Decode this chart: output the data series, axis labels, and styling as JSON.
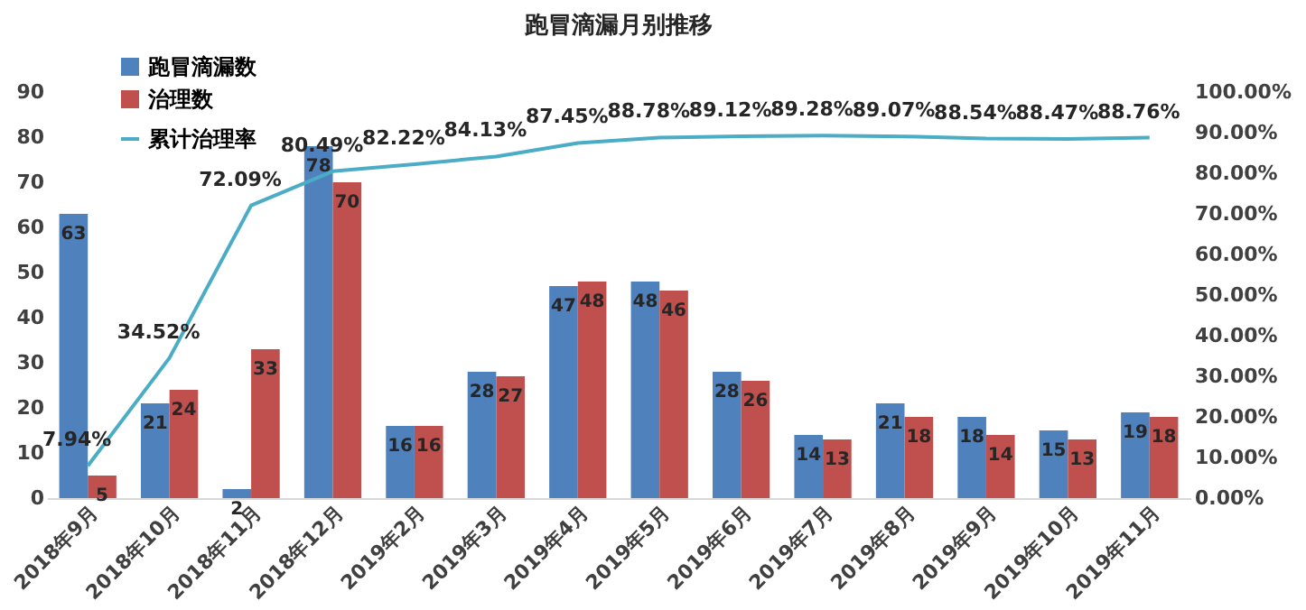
{
  "chart_data": {
    "type": "bar",
    "title": "跑冒滴漏月别推移",
    "categories": [
      "2018年9月",
      "2018年10月",
      "2018年11月",
      "2018年12月",
      "2019年2月",
      "2019年3月",
      "2019年4月",
      "2019年5月",
      "2019年6月",
      "2019年7月",
      "2019年8月",
      "2019年9月",
      "2019年10月",
      "2019年11月"
    ],
    "series": [
      {
        "name": "跑冒滴漏数",
        "color": "#4f81bd",
        "values": [
          63,
          21,
          2,
          78,
          16,
          28,
          47,
          48,
          28,
          14,
          21,
          18,
          15,
          19
        ]
      },
      {
        "name": "治理数",
        "color": "#c0504d",
        "values": [
          5,
          24,
          33,
          70,
          16,
          27,
          48,
          46,
          26,
          13,
          18,
          14,
          13,
          18
        ]
      },
      {
        "name": "累计治理率",
        "type": "line",
        "axis": "y2",
        "color": "#4bacc6",
        "values": [
          7.94,
          34.52,
          72.09,
          80.49,
          82.22,
          84.13,
          87.45,
          88.78,
          89.12,
          89.28,
          89.07,
          88.54,
          88.47,
          88.76
        ],
        "value_labels": [
          "7.94%",
          "34.52%",
          "72.09%",
          "80.49%",
          "82.22%",
          "84.13%",
          "87.45%",
          "88.78%",
          "89.12%",
          "89.28%",
          "89.07%",
          "88.54%",
          "88.47%",
          "88.76%"
        ]
      }
    ],
    "ylim": [
      0,
      90
    ],
    "yticks": [
      0,
      10,
      20,
      30,
      40,
      50,
      60,
      70,
      80,
      90
    ],
    "y2lim": [
      0,
      100
    ],
    "y2ticks": [
      {
        "value": 0,
        "label": "0.00%"
      },
      {
        "value": 10,
        "label": "10.00%"
      },
      {
        "value": 20,
        "label": "20.00%"
      },
      {
        "value": 30,
        "label": "30.00%"
      },
      {
        "value": 40,
        "label": "40.00%"
      },
      {
        "value": 50,
        "label": "50.00%"
      },
      {
        "value": 60,
        "label": "60.00%"
      },
      {
        "value": 70,
        "label": "70.00%"
      },
      {
        "value": 80,
        "label": "80.00%"
      },
      {
        "value": 90,
        "label": "90.00%"
      },
      {
        "value": 100,
        "label": "100.00%"
      }
    ],
    "data_labels": true,
    "legend": "top left"
  }
}
